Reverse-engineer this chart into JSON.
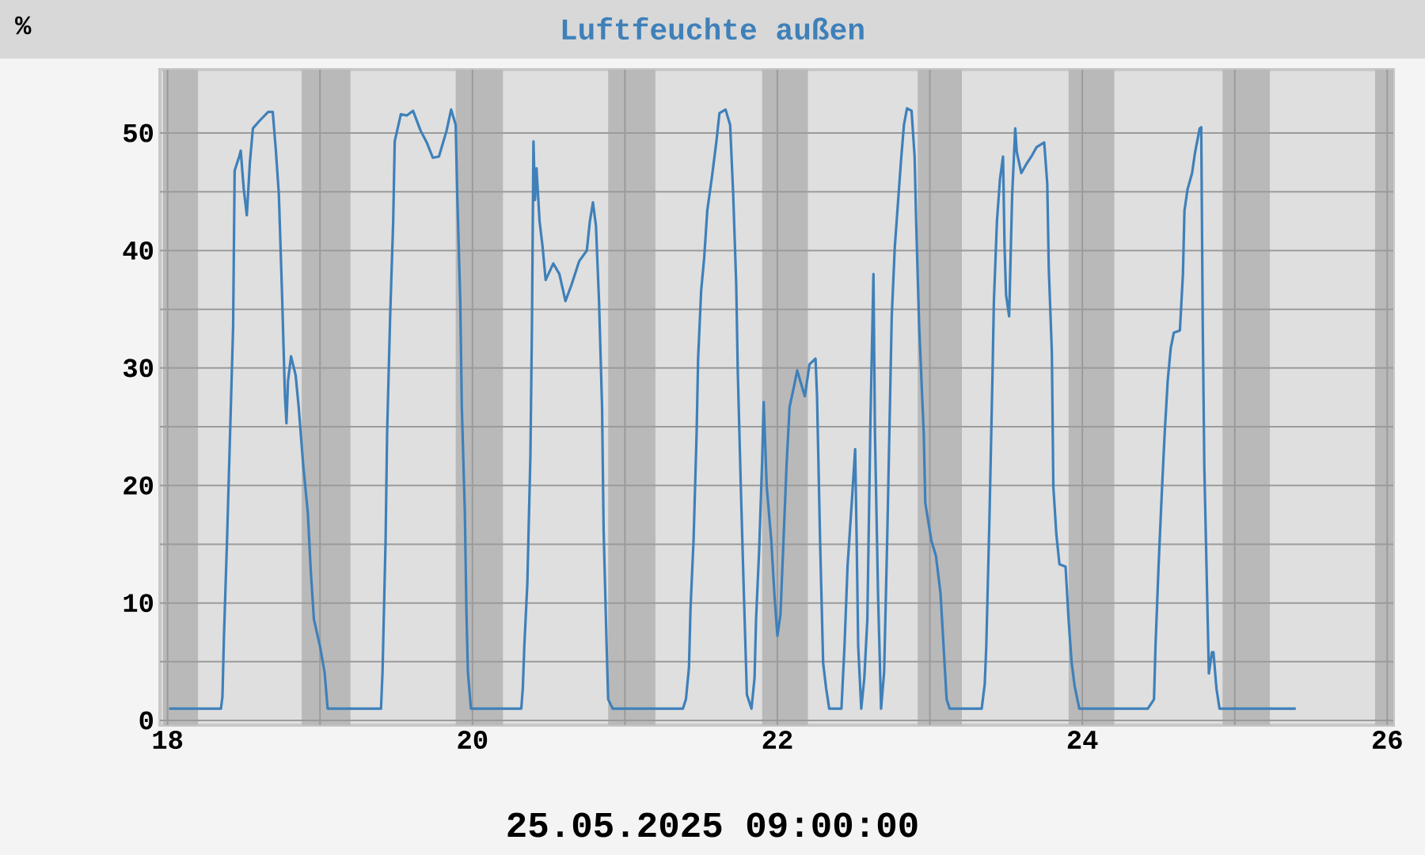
{
  "chart_data": {
    "type": "line",
    "title": "Luftfeuchte außen",
    "ylabel": "%",
    "annotations": [
      "25.05.2025 09:00:00"
    ],
    "x": [
      18.01,
      18.35,
      18.36,
      18.37,
      18.39,
      18.41,
      18.43,
      18.44,
      18.47,
      18.48,
      18.5,
      18.52,
      18.54,
      18.56,
      18.6,
      18.66,
      18.69,
      18.71,
      18.73,
      18.75,
      18.77,
      18.78,
      18.79,
      18.81,
      18.84,
      18.86,
      18.89,
      18.92,
      18.94,
      18.96,
      19.0,
      19.03,
      19.05,
      19.4,
      19.41,
      19.43,
      19.44,
      19.46,
      19.48,
      19.49,
      19.53,
      19.57,
      19.61,
      19.66,
      19.7,
      19.74,
      19.78,
      19.83,
      19.86,
      19.89,
      19.9,
      19.92,
      19.93,
      19.95,
      19.96,
      19.97,
      19.99,
      20.32,
      20.33,
      20.34,
      20.36,
      20.38,
      20.39,
      20.4,
      20.41,
      20.42,
      20.44,
      20.46,
      20.48,
      20.53,
      20.57,
      20.61,
      20.65,
      20.7,
      20.75,
      20.77,
      20.79,
      20.81,
      20.83,
      20.85,
      20.86,
      20.88,
      20.89,
      20.92,
      21.38,
      21.4,
      21.42,
      21.43,
      21.45,
      21.47,
      21.48,
      21.5,
      21.52,
      21.54,
      21.57,
      21.6,
      21.62,
      21.66,
      21.69,
      21.71,
      21.73,
      21.74,
      21.76,
      21.78,
      21.8,
      21.83,
      21.85,
      21.86,
      21.88,
      21.9,
      21.91,
      21.93,
      21.96,
      21.98,
      22.0,
      22.02,
      22.04,
      22.06,
      22.08,
      22.11,
      22.13,
      22.15,
      22.18,
      22.21,
      22.25,
      22.26,
      22.28,
      22.3,
      22.32,
      22.34,
      22.42,
      22.44,
      22.46,
      22.49,
      22.51,
      22.52,
      22.53,
      22.55,
      22.57,
      22.59,
      22.61,
      22.63,
      22.64,
      22.66,
      22.68,
      22.7,
      22.72,
      22.75,
      22.77,
      22.79,
      22.81,
      22.83,
      22.85,
      22.88,
      22.9,
      22.91,
      22.93,
      22.96,
      22.97,
      23.01,
      23.04,
      23.07,
      23.09,
      23.11,
      23.13,
      23.34,
      23.36,
      23.37,
      23.39,
      23.41,
      23.42,
      23.44,
      23.46,
      23.48,
      23.49,
      23.5,
      23.52,
      23.54,
      23.56,
      23.57,
      23.6,
      23.63,
      23.67,
      23.7,
      23.75,
      23.77,
      23.78,
      23.8,
      23.81,
      23.83,
      23.85,
      23.89,
      23.91,
      23.93,
      23.95,
      23.98,
      24.43,
      24.47,
      24.48,
      24.5,
      24.52,
      24.54,
      24.56,
      24.58,
      24.6,
      24.64,
      24.66,
      24.67,
      24.69,
      24.72,
      24.74,
      24.77,
      24.78,
      24.79,
      24.8,
      24.82,
      24.83,
      24.85,
      24.86,
      24.88,
      24.9,
      25.4
    ],
    "values": [
      1,
      1,
      2,
      7.2,
      15.3,
      24.4,
      33.5,
      46.8,
      48,
      48.5,
      45.2,
      43,
      47.5,
      50.4,
      51,
      51.8,
      51.8,
      48.6,
      44.8,
      36.7,
      27.6,
      25.3,
      28.9,
      31,
      29.4,
      26.7,
      21.7,
      17.7,
      12.6,
      8.6,
      6.3,
      4.1,
      1,
      1,
      4.1,
      15.3,
      24.4,
      34.4,
      42.5,
      49.3,
      51.6,
      51.5,
      51.9,
      50.2,
      49.2,
      47.9,
      48,
      50.2,
      52,
      50.7,
      44.8,
      35.7,
      26.7,
      17.7,
      9.5,
      4.1,
      1,
      1,
      2.7,
      6.3,
      11.7,
      22.6,
      33.5,
      49.3,
      44.3,
      47,
      42.5,
      40.3,
      37.5,
      38.9,
      38,
      35.7,
      37.1,
      39.1,
      40,
      42.5,
      44.1,
      42.1,
      35.7,
      26.7,
      16.3,
      6.3,
      1.8,
      1,
      1,
      1.8,
      4.5,
      9.5,
      15.3,
      24.4,
      30.8,
      36.6,
      39.4,
      43.4,
      46.2,
      49.3,
      51.7,
      52,
      50.7,
      44.8,
      37.1,
      29.8,
      19.9,
      10.8,
      2.2,
      1,
      3.6,
      8.6,
      14.4,
      22.1,
      27.1,
      19.9,
      15.3,
      10.8,
      7.2,
      9,
      15.3,
      21.7,
      26.7,
      28.5,
      29.8,
      28.9,
      27.6,
      30.3,
      30.8,
      27.6,
      15.3,
      4.9,
      2.7,
      1,
      1,
      6.3,
      13.1,
      19,
      23.1,
      15.3,
      6.3,
      1,
      3.6,
      8.6,
      25.3,
      38,
      24.4,
      10.8,
      1,
      4.1,
      15.3,
      34.4,
      40.3,
      43.9,
      47.5,
      50.7,
      52.1,
      51.9,
      48,
      42.5,
      33.5,
      24.4,
      18.5,
      15.3,
      14,
      10.8,
      6.3,
      1.8,
      1,
      1,
      3.1,
      6.3,
      16.7,
      28.9,
      35.7,
      42.5,
      46.1,
      48,
      40.3,
      36.2,
      34.4,
      44.8,
      50.4,
      48.4,
      46.6,
      47.3,
      48.1,
      48.8,
      49.2,
      45.7,
      38.5,
      31.4,
      19.9,
      15.8,
      13.3,
      13.1,
      8.6,
      4.9,
      2.9,
      1,
      1,
      1.8,
      6.3,
      13.1,
      19,
      24.4,
      28.9,
      31.7,
      33,
      33.2,
      38,
      43.4,
      45.2,
      46.6,
      48.4,
      50.4,
      50.5,
      33.5,
      21.7,
      9.9,
      4,
      5.8,
      5.8,
      2.7,
      1,
      1
    ],
    "color": "#3f80b9",
    "xlim": [
      17.95,
      26.04
    ],
    "ylim": [
      -0.4,
      55.4
    ],
    "xticks": [
      18,
      {
        "value": 19,
        "label": null
      },
      20,
      {
        "value": 21,
        "label": null
      },
      22,
      {
        "value": 23,
        "label": null
      },
      24,
      {
        "value": 25,
        "label": null
      },
      26
    ],
    "yticks": [
      0,
      {
        "value": 5,
        "label": null
      },
      10,
      {
        "value": 15,
        "label": null
      },
      20,
      {
        "value": 25,
        "label": null
      },
      30,
      {
        "value": 35,
        "label": null
      },
      40,
      {
        "value": 45,
        "label": null
      },
      50
    ],
    "grid": true,
    "marker": "none",
    "line_style": "solid",
    "bands": [
      {
        "axis": "x",
        "from": 17.97,
        "to": 18.2,
        "color": "#b9b9b9"
      },
      {
        "axis": "x",
        "from": 18.88,
        "to": 19.2,
        "color": "#b9b9b9"
      },
      {
        "axis": "x",
        "from": 19.89,
        "to": 20.2,
        "color": "#b9b9b9"
      },
      {
        "axis": "x",
        "from": 20.89,
        "to": 21.2,
        "color": "#b9b9b9"
      },
      {
        "axis": "x",
        "from": 21.9,
        "to": 22.2,
        "color": "#b9b9b9"
      },
      {
        "axis": "x",
        "from": 22.92,
        "to": 23.21,
        "color": "#b9b9b9"
      },
      {
        "axis": "x",
        "from": 23.91,
        "to": 24.21,
        "color": "#b9b9b9"
      },
      {
        "axis": "x",
        "from": 24.92,
        "to": 25.23,
        "color": "#b9b9b9"
      },
      {
        "axis": "x",
        "from": 25.92,
        "to": 26.04,
        "color": "#b9b9b9"
      }
    ]
  }
}
